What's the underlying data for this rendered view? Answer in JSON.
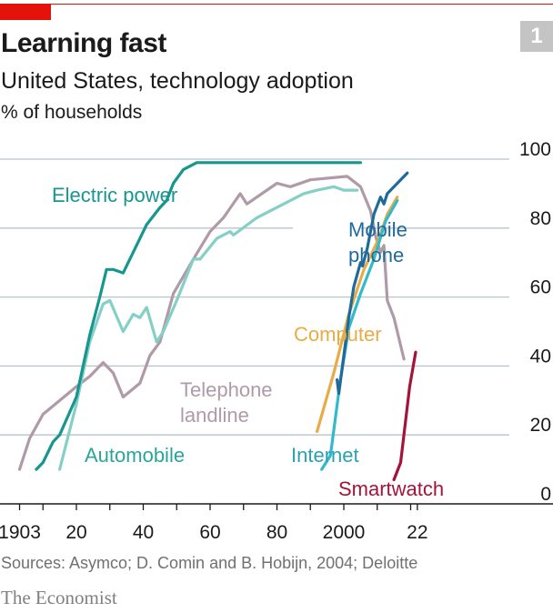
{
  "header": {
    "badge": "1",
    "title": "Learning fast",
    "subtitle": "United States, technology adoption",
    "unit": "% of households"
  },
  "footer": {
    "sources": "Sources: Asymco; D. Comin and B. Hobijn, 2004; Deloitte",
    "logo": "The Economist"
  },
  "colors": {
    "brand_red": "#e3120b"
  },
  "chart_data": {
    "type": "line",
    "title": "Learning fast",
    "subtitle": "United States, technology adoption",
    "ylabel": "% of households",
    "xlim": [
      1903,
      2030
    ],
    "ylim": [
      0,
      100
    ],
    "x_ticks": [
      1903,
      1910,
      1920,
      1930,
      1940,
      1950,
      1960,
      1970,
      1980,
      1990,
      2000,
      2010,
      2020,
      2022
    ],
    "x_tick_labels": [
      {
        "year": 1903,
        "label": "1903"
      },
      {
        "year": 1920,
        "label": "20"
      },
      {
        "year": 1940,
        "label": "40"
      },
      {
        "year": 1960,
        "label": "60"
      },
      {
        "year": 1980,
        "label": "80"
      },
      {
        "year": 2000,
        "label": "2000"
      },
      {
        "year": 2022,
        "label": "22"
      }
    ],
    "y_ticks": [
      0,
      20,
      40,
      60,
      80,
      100
    ],
    "grid": true,
    "legend": "direct labels",
    "series": [
      {
        "name": "Electric power",
        "color": "#17968f",
        "label_color": "#17968f",
        "points": [
          [
            1908,
            10
          ],
          [
            1910,
            12
          ],
          [
            1913,
            18
          ],
          [
            1915,
            20
          ],
          [
            1920,
            31
          ],
          [
            1924,
            49
          ],
          [
            1927,
            60
          ],
          [
            1929,
            68
          ],
          [
            1931,
            68
          ],
          [
            1934,
            67
          ],
          [
            1937,
            73
          ],
          [
            1941,
            81
          ],
          [
            1945,
            86
          ],
          [
            1947,
            88
          ],
          [
            1949,
            93
          ],
          [
            1952,
            97
          ],
          [
            1956,
            99
          ],
          [
            2005,
            99
          ]
        ]
      },
      {
        "name": "Automobile",
        "color": "#84cfc6",
        "label_color": "#2aa59c",
        "points": [
          [
            1915,
            10
          ],
          [
            1920,
            29
          ],
          [
            1924,
            47
          ],
          [
            1928,
            58
          ],
          [
            1930,
            59
          ],
          [
            1934,
            50
          ],
          [
            1937,
            55
          ],
          [
            1939,
            54
          ],
          [
            1941,
            57
          ],
          [
            1944,
            47
          ],
          [
            1946,
            50
          ],
          [
            1950,
            59
          ],
          [
            1955,
            71
          ],
          [
            1957,
            71
          ],
          [
            1962,
            77
          ],
          [
            1966,
            79
          ],
          [
            1967,
            78
          ],
          [
            1974,
            83
          ],
          [
            1980,
            86
          ],
          [
            1988,
            90
          ],
          [
            1992,
            91
          ],
          [
            1997,
            92
          ],
          [
            2000,
            91
          ],
          [
            2004,
            91
          ]
        ]
      },
      {
        "name": "Telephone landline",
        "color": "#b09aa8",
        "label_color": "#b09aa8",
        "points": [
          [
            1903,
            10
          ],
          [
            1906,
            19
          ],
          [
            1910,
            26
          ],
          [
            1920,
            34
          ],
          [
            1924,
            37
          ],
          [
            1928,
            41
          ],
          [
            1931,
            38
          ],
          [
            1934,
            31
          ],
          [
            1939,
            35
          ],
          [
            1942,
            43
          ],
          [
            1945,
            47
          ],
          [
            1949,
            61
          ],
          [
            1955,
            71
          ],
          [
            1960,
            79
          ],
          [
            1964,
            83
          ],
          [
            1969,
            90
          ],
          [
            1971,
            87
          ],
          [
            1980,
            93
          ],
          [
            1984,
            92
          ],
          [
            1990,
            94
          ],
          [
            2001,
            95
          ],
          [
            2005,
            92
          ],
          [
            2008,
            85
          ],
          [
            2009.7,
            77
          ],
          [
            2011,
            73
          ],
          [
            2012,
            75
          ],
          [
            2013,
            59
          ],
          [
            2015,
            54
          ],
          [
            2018,
            42
          ]
        ]
      },
      {
        "name": "Mobile phone",
        "color": "#1f6a9a",
        "label_color": "#1f6a9a",
        "points": [
          [
            1998,
            36
          ],
          [
            1998.5,
            32
          ],
          [
            2001.5,
            54
          ],
          [
            2003,
            63
          ],
          [
            2005,
            70
          ],
          [
            2005.6,
            69
          ],
          [
            2007,
            74
          ],
          [
            2009,
            84
          ],
          [
            2011,
            89
          ],
          [
            2012,
            87
          ],
          [
            2013,
            90
          ],
          [
            2019,
            96
          ]
        ]
      },
      {
        "name": "Computer",
        "color": "#e8ac46",
        "label_color": "#e8ac46",
        "points": [
          [
            1992,
            21
          ],
          [
            1997,
            38
          ],
          [
            2001.5,
            55
          ],
          [
            2006,
            68
          ],
          [
            2010.5,
            77
          ],
          [
            2013,
            84
          ],
          [
            2016,
            89
          ]
        ]
      },
      {
        "name": "Internet",
        "color": "#33b9cc",
        "label_color": "#2aa3b0",
        "points": [
          [
            1993.4,
            10
          ],
          [
            1996,
            14
          ],
          [
            1999,
            36
          ],
          [
            2001.5,
            51
          ],
          [
            2005,
            61
          ],
          [
            2009,
            71
          ],
          [
            2012.5,
            82
          ],
          [
            2016,
            88
          ]
        ]
      },
      {
        "name": "Smartwatch",
        "color": "#a5133a",
        "label_color": "#a5133a",
        "points": [
          [
            2015,
            7
          ],
          [
            2017,
            12
          ],
          [
            2019.7,
            34
          ],
          [
            2021.5,
            44
          ]
        ]
      }
    ]
  }
}
